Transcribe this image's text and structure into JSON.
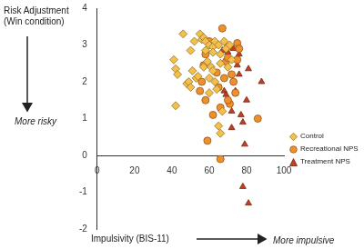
{
  "chart_data": {
    "type": "scatter",
    "y_label": "Risk Adjustment (Win condition)",
    "x_label": "Impulsivity (BIS-11)",
    "annotations": [
      "More risky",
      "More impulsive"
    ],
    "xlim": [
      0,
      100
    ],
    "xticks": [
      0,
      20,
      40,
      60,
      80,
      100
    ],
    "ylim": [
      -2,
      4
    ],
    "yticks": [
      -2,
      -1,
      0,
      1,
      2,
      3,
      4
    ],
    "grid": false,
    "legend": "right",
    "series": [
      {
        "name": "Control",
        "color": "#f5c04a",
        "marker": "diamond",
        "x": [
          46,
          52,
          50,
          41,
          42,
          43,
          42,
          48,
          49,
          50,
          51,
          53,
          54,
          55,
          56,
          57,
          58,
          58,
          60,
          59,
          57,
          60,
          61,
          62,
          63,
          62,
          62,
          63,
          60,
          64,
          65,
          66,
          66,
          65,
          66,
          67,
          69,
          71,
          70,
          72,
          68
        ],
        "values": [
          3.3,
          3.1,
          2.85,
          2.6,
          2.35,
          2.2,
          1.35,
          1.95,
          2.0,
          1.85,
          2.3,
          2.1,
          2.15,
          3.3,
          3.15,
          3.2,
          3.1,
          2.85,
          3.0,
          2.55,
          2.4,
          2.1,
          2.4,
          2.95,
          3.1,
          2.8,
          2.3,
          2.0,
          1.7,
          1.8,
          3.0,
          2.75,
          2.5,
          0.8,
          0.6,
          1.2,
          2.9,
          3.0,
          2.4,
          2.6,
          3.1
        ]
      },
      {
        "name": "Recreational NPS",
        "color": "#f0902c",
        "marker": "circle",
        "x": [
          58,
          57,
          56,
          55,
          58,
          59,
          62,
          64,
          65,
          67,
          66,
          68,
          69,
          70,
          70,
          71,
          72,
          73,
          74,
          75,
          75,
          76,
          66,
          86,
          70,
          60
        ],
        "values": [
          2.75,
          2.45,
          2.0,
          1.75,
          1.5,
          0.4,
          1.1,
          2.25,
          1.85,
          3.45,
          1.3,
          2.1,
          2.55,
          2.65,
          2.95,
          1.4,
          2.2,
          2.0,
          1.7,
          3.05,
          2.6,
          2.9,
          -0.1,
          1.0,
          1.5,
          3.1
        ]
      },
      {
        "name": "Treatment NPS",
        "color": "#c0401f",
        "marker": "triangle",
        "x": [
          67,
          68,
          69,
          70,
          72,
          72,
          73,
          75,
          75,
          76,
          77,
          78,
          79,
          80,
          81,
          78,
          81,
          88,
          74,
          76
        ],
        "values": [
          2.85,
          1.75,
          1.65,
          2.8,
          1.2,
          0.75,
          2.9,
          2.45,
          3.05,
          2.2,
          1.1,
          0.9,
          0.3,
          1.5,
          2.35,
          -0.85,
          -1.3,
          2.0,
          1.75,
          2.75
        ]
      }
    ]
  }
}
